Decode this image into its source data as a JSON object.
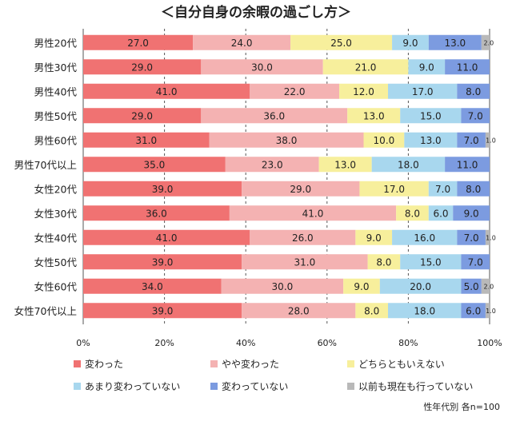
{
  "chart_data": {
    "type": "bar",
    "orientation": "horizontal",
    "stacked": true,
    "percent": true,
    "title": "＜自分自身の余暇の過ごし方＞",
    "xlim": [
      0,
      100
    ],
    "x_ticks": [
      "0%",
      "20%",
      "40%",
      "60%",
      "80%",
      "100%"
    ],
    "grid": "vertical dashed",
    "categories": [
      "男性20代",
      "男性30代",
      "男性40代",
      "男性50代",
      "男性60代",
      "男性70代以上",
      "女性20代",
      "女性30代",
      "女性40代",
      "女性50代",
      "女性60代",
      "女性70代以上"
    ],
    "series": [
      {
        "name": "変わった",
        "color": "#f07272",
        "values": [
          27.0,
          29.0,
          41.0,
          29.0,
          31.0,
          35.0,
          39.0,
          36.0,
          41.0,
          39.0,
          34.0,
          39.0
        ]
      },
      {
        "name": "やや変わった",
        "color": "#f4b2b2",
        "values": [
          24.0,
          30.0,
          22.0,
          36.0,
          38.0,
          23.0,
          29.0,
          41.0,
          26.0,
          31.0,
          30.0,
          28.0
        ]
      },
      {
        "name": "どちらともいえない",
        "color": "#f7ef9c",
        "values": [
          25.0,
          21.0,
          12.0,
          13.0,
          10.0,
          13.0,
          17.0,
          8.0,
          9.0,
          8.0,
          9.0,
          8.0
        ]
      },
      {
        "name": "あまり変わっていない",
        "color": "#a8d7ee",
        "values": [
          9.0,
          9.0,
          17.0,
          15.0,
          13.0,
          18.0,
          7.0,
          6.0,
          16.0,
          15.0,
          20.0,
          18.0
        ]
      },
      {
        "name": "変わっていない",
        "color": "#7c9be0",
        "values": [
          13.0,
          11.0,
          8.0,
          7.0,
          7.0,
          11.0,
          8.0,
          9.0,
          7.0,
          7.0,
          5.0,
          6.0
        ]
      },
      {
        "name": "以前も現在も行っていない",
        "color": "#b9b9b9",
        "values": [
          2.0,
          0,
          0,
          0,
          1.0,
          0,
          0,
          0,
          1.0,
          0,
          2.0,
          1.0
        ]
      }
    ],
    "legend_position": "bottom",
    "footnote": "性年代別  各n=100"
  }
}
